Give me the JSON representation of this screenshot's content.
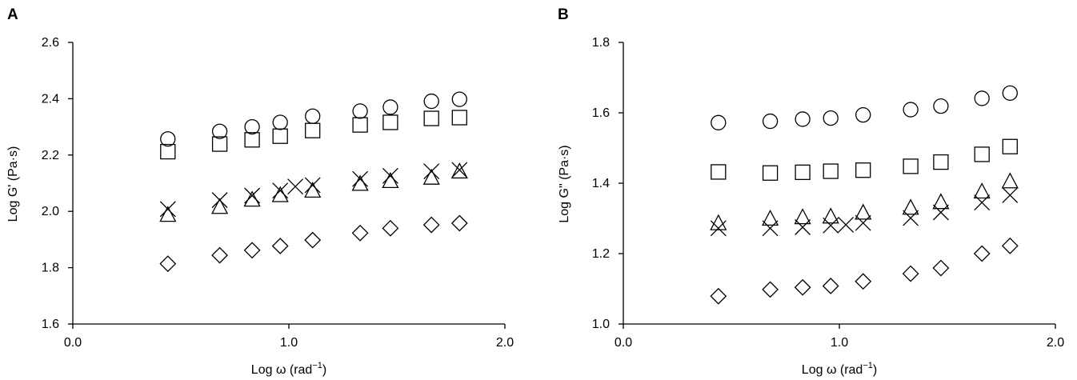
{
  "chart_data": [
    {
      "type": "scatter",
      "panel_label": "A",
      "xlabel_main": "Log ω (rad",
      "xlabel_sup": "−1",
      "xlabel_tail": ")",
      "ylabel": "Log G' (Pa·s)",
      "xlim": [
        0.0,
        2.0
      ],
      "ylim": [
        1.6,
        2.6
      ],
      "xticks": [
        0.0,
        1.0,
        2.0
      ],
      "xtick_labels": [
        "0.0",
        "1.0",
        "2.0"
      ],
      "yticks": [
        1.6,
        1.8,
        2.0,
        2.2,
        2.4,
        2.6
      ],
      "ytick_labels": [
        "1.6",
        "1.8",
        "2.0",
        "2.2",
        "2.4",
        "2.6"
      ],
      "grid": false,
      "series": [
        {
          "marker": "circle",
          "x": [
            0.44,
            0.68,
            0.83,
            0.96,
            1.11,
            1.33,
            1.47,
            1.66,
            1.79
          ],
          "y": [
            2.257,
            2.284,
            2.3,
            2.316,
            2.338,
            2.356,
            2.37,
            2.391,
            2.398
          ]
        },
        {
          "marker": "square",
          "x": [
            0.44,
            0.68,
            0.83,
            0.96,
            1.11,
            1.33,
            1.47,
            1.66,
            1.79
          ],
          "y": [
            2.212,
            2.239,
            2.254,
            2.267,
            2.287,
            2.307,
            2.316,
            2.33,
            2.333
          ]
        },
        {
          "marker": "cross",
          "x": [
            0.44,
            0.68,
            0.83,
            0.96,
            1.03,
            1.11,
            1.33,
            1.47,
            1.66,
            1.79
          ],
          "y": [
            2.008,
            2.04,
            2.056,
            2.074,
            2.088,
            2.093,
            2.115,
            2.126,
            2.142,
            2.147
          ]
        },
        {
          "marker": "triangle",
          "x": [
            0.44,
            0.68,
            0.83,
            0.96,
            1.11,
            1.33,
            1.47,
            1.66,
            1.79
          ],
          "y": [
            1.986,
            2.014,
            2.04,
            2.056,
            2.072,
            2.096,
            2.106,
            2.118,
            2.14
          ]
        },
        {
          "marker": "diamond",
          "x": [
            0.44,
            0.68,
            0.83,
            0.96,
            1.11,
            1.33,
            1.47,
            1.66,
            1.79
          ],
          "y": [
            1.814,
            1.844,
            1.862,
            1.877,
            1.898,
            1.923,
            1.94,
            1.952,
            1.958
          ]
        }
      ]
    },
    {
      "type": "scatter",
      "panel_label": "B",
      "xlabel_main": "Log ω (rad",
      "xlabel_sup": "−1",
      "xlabel_tail": ")",
      "ylabel": "Log G\" (Pa·s)",
      "xlim": [
        0.0,
        2.0
      ],
      "ylim": [
        1.0,
        1.8
      ],
      "xticks": [
        0.0,
        1.0,
        2.0
      ],
      "xtick_labels": [
        "0.0",
        "1.0",
        "2.0"
      ],
      "yticks": [
        1.0,
        1.2,
        1.4,
        1.6,
        1.8
      ],
      "ytick_labels": [
        "1.0",
        "1.2",
        "1.4",
        "1.6",
        "1.8"
      ],
      "grid": false,
      "series": [
        {
          "marker": "circle",
          "x": [
            0.44,
            0.68,
            0.83,
            0.96,
            1.11,
            1.33,
            1.47,
            1.66,
            1.79
          ],
          "y": [
            1.572,
            1.576,
            1.582,
            1.585,
            1.594,
            1.609,
            1.619,
            1.641,
            1.656
          ]
        },
        {
          "marker": "square",
          "x": [
            0.44,
            0.68,
            0.83,
            0.96,
            1.11,
            1.33,
            1.47,
            1.66,
            1.79
          ],
          "y": [
            1.432,
            1.429,
            1.431,
            1.434,
            1.437,
            1.448,
            1.46,
            1.482,
            1.504
          ]
        },
        {
          "marker": "triangle",
          "x": [
            0.44,
            0.68,
            0.83,
            0.96,
            1.11,
            1.33,
            1.47,
            1.66,
            1.79
          ],
          "y": [
            1.285,
            1.298,
            1.302,
            1.304,
            1.315,
            1.329,
            1.345,
            1.375,
            1.404
          ]
        },
        {
          "marker": "cross",
          "x": [
            0.44,
            0.68,
            0.83,
            0.96,
            1.03,
            1.11,
            1.33,
            1.47,
            1.66,
            1.79
          ],
          "y": [
            1.272,
            1.272,
            1.275,
            1.28,
            1.282,
            1.287,
            1.301,
            1.317,
            1.345,
            1.366
          ]
        },
        {
          "marker": "diamond",
          "x": [
            0.44,
            0.68,
            0.83,
            0.96,
            1.11,
            1.33,
            1.47,
            1.66,
            1.79
          ],
          "y": [
            1.079,
            1.098,
            1.104,
            1.108,
            1.121,
            1.143,
            1.159,
            1.2,
            1.222
          ]
        }
      ]
    }
  ]
}
